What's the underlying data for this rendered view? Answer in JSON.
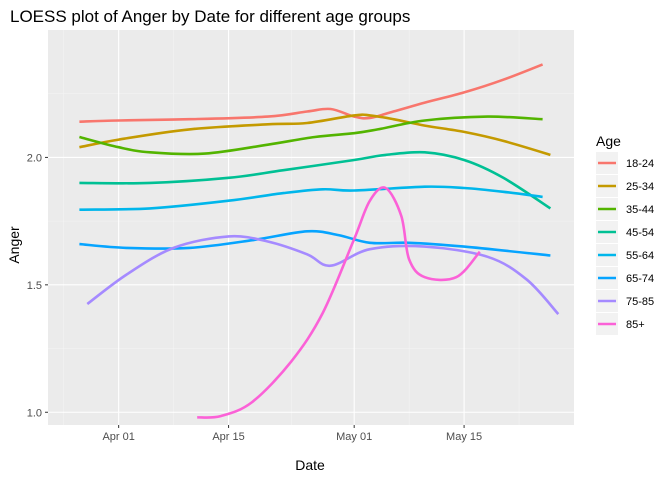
{
  "chart_data": {
    "type": "line",
    "title": "LOESS plot of Anger by Date for different age groups",
    "xlabel": "Date",
    "ylabel": "Anger",
    "x_type": "date",
    "xlim": [
      "2020-03-23",
      "2020-05-29"
    ],
    "ylim": [
      0.95,
      2.5
    ],
    "x_ticks": [
      {
        "date": "2020-04-01",
        "label": "Apr 01"
      },
      {
        "date": "2020-04-15",
        "label": "Apr 15"
      },
      {
        "date": "2020-05-01",
        "label": "May 01"
      },
      {
        "date": "2020-05-15",
        "label": "May 15"
      }
    ],
    "y_ticks": [
      {
        "value": 1.0,
        "label": "1.0"
      },
      {
        "value": 1.5,
        "label": "1.5"
      },
      {
        "value": 2.0,
        "label": "2.0"
      }
    ],
    "grid": true,
    "background": "#ebebeb",
    "legend": {
      "title": "Age",
      "position": "right"
    },
    "series": [
      {
        "name": "18-24",
        "color": "#F8766D",
        "points": [
          [
            "2020-03-27",
            2.14
          ],
          [
            "2020-04-01",
            2.145
          ],
          [
            "2020-04-10",
            2.15
          ],
          [
            "2020-04-20",
            2.16
          ],
          [
            "2020-04-25",
            2.18
          ],
          [
            "2020-04-28",
            2.19
          ],
          [
            "2020-05-01",
            2.16
          ],
          [
            "2020-05-03",
            2.155
          ],
          [
            "2020-05-06",
            2.18
          ],
          [
            "2020-05-10",
            2.215
          ],
          [
            "2020-05-15",
            2.255
          ],
          [
            "2020-05-20",
            2.305
          ],
          [
            "2020-05-25",
            2.365
          ]
        ]
      },
      {
        "name": "25-34",
        "color": "#C49A00",
        "points": [
          [
            "2020-03-27",
            2.04
          ],
          [
            "2020-04-01",
            2.07
          ],
          [
            "2020-04-10",
            2.11
          ],
          [
            "2020-04-20",
            2.13
          ],
          [
            "2020-04-25",
            2.135
          ],
          [
            "2020-05-01",
            2.165
          ],
          [
            "2020-05-03",
            2.165
          ],
          [
            "2020-05-06",
            2.15
          ],
          [
            "2020-05-10",
            2.125
          ],
          [
            "2020-05-15",
            2.1
          ],
          [
            "2020-05-20",
            2.065
          ],
          [
            "2020-05-26",
            2.01
          ]
        ]
      },
      {
        "name": "35-44",
        "color": "#53B400",
        "points": [
          [
            "2020-03-27",
            2.08
          ],
          [
            "2020-04-01",
            2.04
          ],
          [
            "2020-04-05",
            2.02
          ],
          [
            "2020-04-12",
            2.015
          ],
          [
            "2020-04-20",
            2.05
          ],
          [
            "2020-04-26",
            2.08
          ],
          [
            "2020-05-01",
            2.095
          ],
          [
            "2020-05-04",
            2.11
          ],
          [
            "2020-05-10",
            2.145
          ],
          [
            "2020-05-18",
            2.16
          ],
          [
            "2020-05-25",
            2.15
          ]
        ]
      },
      {
        "name": "45-54",
        "color": "#00C094",
        "points": [
          [
            "2020-03-27",
            1.9
          ],
          [
            "2020-04-05",
            1.9
          ],
          [
            "2020-04-15",
            1.92
          ],
          [
            "2020-04-22",
            1.95
          ],
          [
            "2020-05-01",
            1.99
          ],
          [
            "2020-05-05",
            2.01
          ],
          [
            "2020-05-10",
            2.02
          ],
          [
            "2020-05-15",
            1.99
          ],
          [
            "2020-05-20",
            1.92
          ],
          [
            "2020-05-26",
            1.8
          ]
        ]
      },
      {
        "name": "55-64",
        "color": "#00B6EB",
        "points": [
          [
            "2020-03-27",
            1.795
          ],
          [
            "2020-04-05",
            1.8
          ],
          [
            "2020-04-15",
            1.83
          ],
          [
            "2020-04-22",
            1.86
          ],
          [
            "2020-04-27",
            1.875
          ],
          [
            "2020-05-01",
            1.87
          ],
          [
            "2020-05-10",
            1.885
          ],
          [
            "2020-05-15",
            1.88
          ],
          [
            "2020-05-20",
            1.865
          ],
          [
            "2020-05-25",
            1.845
          ]
        ]
      },
      {
        "name": "65-74",
        "color": "#06A4FF",
        "points": [
          [
            "2020-03-27",
            1.66
          ],
          [
            "2020-04-02",
            1.645
          ],
          [
            "2020-04-10",
            1.645
          ],
          [
            "2020-04-18",
            1.675
          ],
          [
            "2020-04-25",
            1.71
          ],
          [
            "2020-04-29",
            1.695
          ],
          [
            "2020-05-03",
            1.665
          ],
          [
            "2020-05-08",
            1.665
          ],
          [
            "2020-05-15",
            1.65
          ],
          [
            "2020-05-26",
            1.615
          ]
        ]
      },
      {
        "name": "75-85",
        "color": "#A58AFF",
        "points": [
          [
            "2020-03-28",
            1.425
          ],
          [
            "2020-04-02",
            1.54
          ],
          [
            "2020-04-08",
            1.645
          ],
          [
            "2020-04-15",
            1.69
          ],
          [
            "2020-04-20",
            1.67
          ],
          [
            "2020-04-25",
            1.62
          ],
          [
            "2020-04-28",
            1.575
          ],
          [
            "2020-05-03",
            1.64
          ],
          [
            "2020-05-10",
            1.65
          ],
          [
            "2020-05-18",
            1.61
          ],
          [
            "2020-05-23",
            1.52
          ],
          [
            "2020-05-27",
            1.385
          ]
        ]
      },
      {
        "name": "85+",
        "color": "#FB61D7",
        "points": [
          [
            "2020-04-11",
            0.98
          ],
          [
            "2020-04-14",
            0.985
          ],
          [
            "2020-04-18",
            1.04
          ],
          [
            "2020-04-23",
            1.2
          ],
          [
            "2020-04-27",
            1.39
          ],
          [
            "2020-05-01",
            1.68
          ],
          [
            "2020-05-03",
            1.83
          ],
          [
            "2020-05-05",
            1.88
          ],
          [
            "2020-05-07",
            1.77
          ],
          [
            "2020-05-08",
            1.6
          ],
          [
            "2020-05-10",
            1.53
          ],
          [
            "2020-05-14",
            1.53
          ],
          [
            "2020-05-17",
            1.63
          ]
        ]
      }
    ]
  }
}
